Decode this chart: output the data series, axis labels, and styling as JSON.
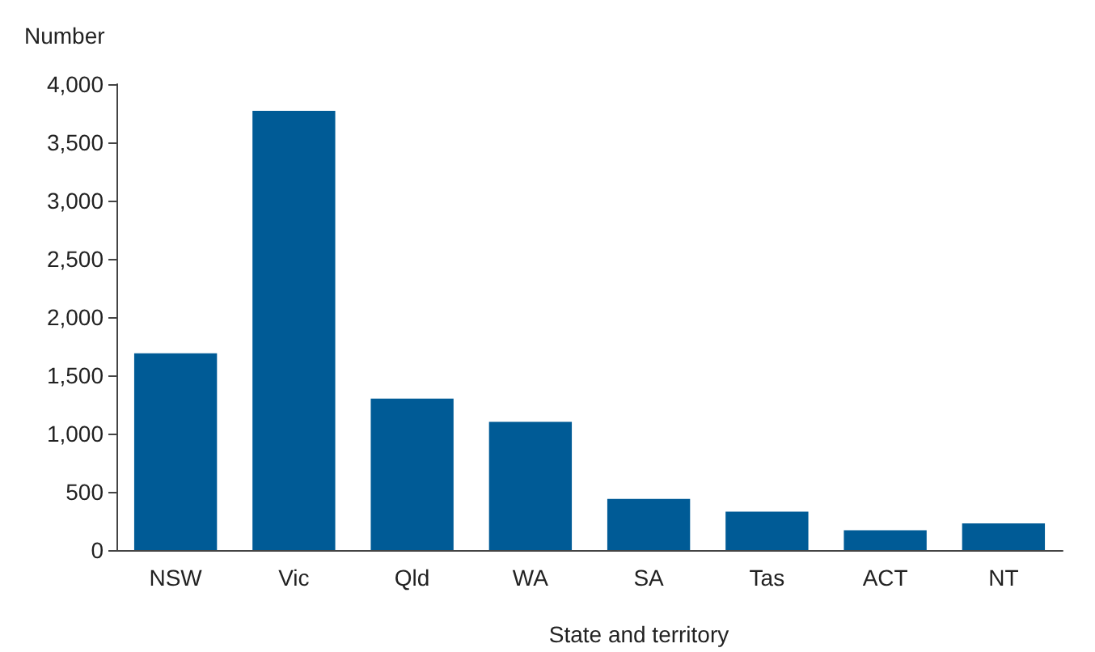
{
  "chart_data": {
    "type": "bar",
    "ylabel": "Number",
    "xlabel": "State and territory",
    "categories": [
      "NSW",
      "Vic",
      "Qld",
      "WA",
      "SA",
      "Tas",
      "ACT",
      "NT"
    ],
    "values": [
      1690,
      3770,
      1300,
      1100,
      440,
      330,
      170,
      230
    ],
    "color": "#005b96",
    "ylim": [
      0,
      4000
    ],
    "yticks": [
      0,
      500,
      {
        "value": 1000,
        "label": "1,000"
      },
      {
        "value": 1500,
        "label": "1,500"
      },
      {
        "value": 2000,
        "label": "2,000"
      },
      {
        "value": 2500,
        "label": "2,500"
      },
      {
        "value": 3000,
        "label": "3,000"
      },
      {
        "value": 3500,
        "label": "3,500"
      },
      {
        "value": 4000,
        "label": "4,000"
      }
    ],
    "grid": false
  }
}
